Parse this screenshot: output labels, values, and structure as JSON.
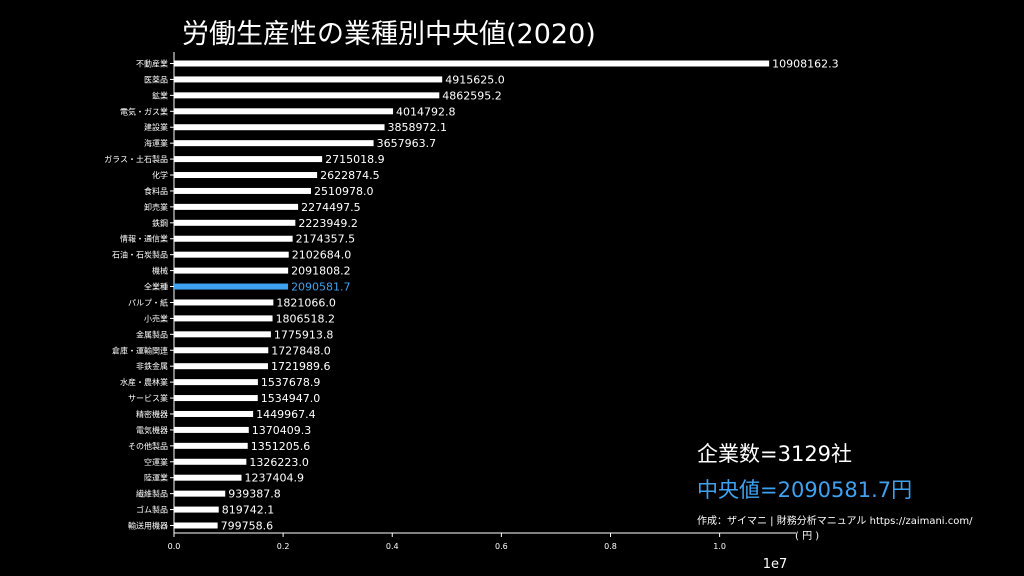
{
  "chart_data": {
    "type": "bar",
    "orientation": "horizontal",
    "title": "労働生産性の業種別中央値(2020)",
    "categories": [
      "不動産業",
      "医薬品",
      "鉱業",
      "電気・ガス業",
      "建設業",
      "海運業",
      "ガラス・土石製品",
      "化学",
      "食料品",
      "卸売業",
      "鉄鋼",
      "情報・通信業",
      "石油・石炭製品",
      "機械",
      "全業種",
      "パルプ・紙",
      "小売業",
      "金属製品",
      "倉庫・運輸関連",
      "非鉄金属",
      "水産・農林業",
      "サービス業",
      "精密機器",
      "電気機器",
      "その他製品",
      "空運業",
      "陸運業",
      "繊維製品",
      "ゴム製品",
      "輸送用機器"
    ],
    "values": [
      10908162.3,
      4915625.0,
      4862595.2,
      4014792.8,
      3858972.1,
      3657963.7,
      2715018.9,
      2622874.5,
      2510978.0,
      2274497.5,
      2223949.2,
      2174357.5,
      2102684.0,
      2091808.2,
      2090581.7,
      1821066.0,
      1806518.2,
      1775913.8,
      1727848.0,
      1721989.6,
      1537678.9,
      1534947.0,
      1449967.4,
      1370409.3,
      1351205.6,
      1326223.0,
      1237404.9,
      939387.8,
      819742.1,
      799758.6
    ],
    "value_labels": [
      "10908162.3",
      "4915625.0",
      "4862595.2",
      "4014792.8",
      "3858972.1",
      "3657963.7",
      "2715018.9",
      "2622874.5",
      "2510978.0",
      "2274497.5",
      "2223949.2",
      "2174357.5",
      "2102684.0",
      "2091808.2",
      "2090581.7",
      "1821066.0",
      "1806518.2",
      "1775913.8",
      "1727848.0",
      "1721989.6",
      "1537678.9",
      "1534947.0",
      "1449967.4",
      "1370409.3",
      "1351205.6",
      "1326223.0",
      "1237404.9",
      "939387.8",
      "819742.1",
      "799758.6"
    ],
    "highlight_category": "全業種",
    "xlim": [
      0,
      11400000
    ],
    "xticks": [
      0,
      2000000,
      4000000,
      6000000,
      8000000,
      10000000
    ],
    "xtick_labels": [
      "0.0",
      "0.2",
      "0.4",
      "0.6",
      "0.8",
      "1.0"
    ],
    "x_offset_label": "1e7",
    "grid": false,
    "colors": {
      "bar": "#ffffff",
      "highlight": "#3fa2f0",
      "background": "#000000",
      "text": "#ffffff"
    }
  },
  "annotations": {
    "company_count": "企業数=3129社",
    "median": "中央値=2090581.7円",
    "credit": "作成：ザイマニ | 財務分析マニュアル https://zaimani.com/",
    "unit": "( 円 )"
  }
}
